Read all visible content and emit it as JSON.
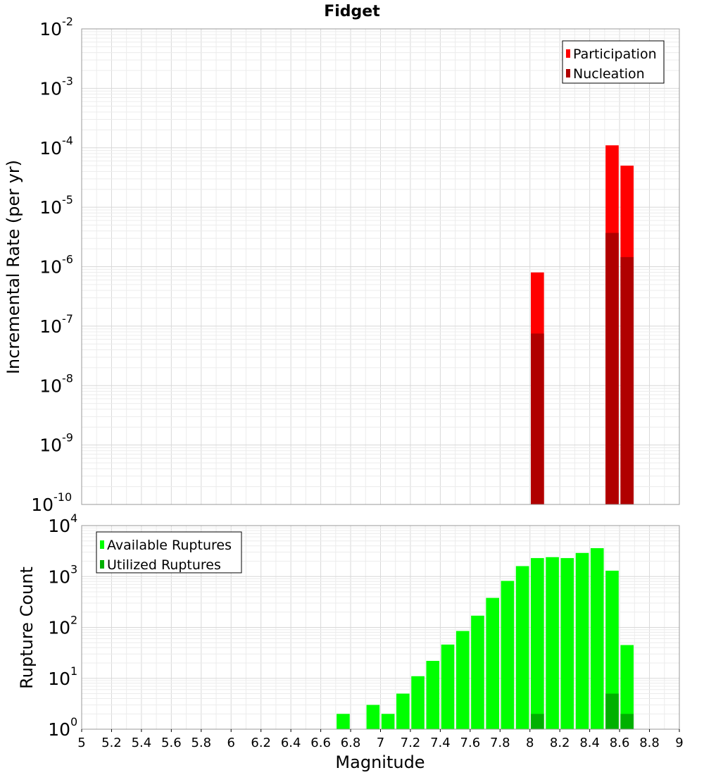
{
  "chart_data": [
    {
      "type": "bar",
      "title": "Fidget",
      "xlabel": "",
      "ylabel": "Incremental Rate (per yr)",
      "y_scale": "log",
      "ylim": [
        1e-10,
        0.01
      ],
      "xlim": [
        5,
        9
      ],
      "y_ticks": [
        {
          "base": "10",
          "exp": "-2",
          "value": 0.01
        },
        {
          "base": "10",
          "exp": "-3",
          "value": 0.001
        },
        {
          "base": "10",
          "exp": "-4",
          "value": 0.0001
        },
        {
          "base": "10",
          "exp": "-5",
          "value": 1e-05
        },
        {
          "base": "10",
          "exp": "-6",
          "value": 1e-06
        },
        {
          "base": "10",
          "exp": "-7",
          "value": 1e-07
        },
        {
          "base": "10",
          "exp": "-8",
          "value": 1e-08
        },
        {
          "base": "10",
          "exp": "-9",
          "value": 1e-09
        },
        {
          "base": "10",
          "exp": "-10",
          "value": 1e-10
        }
      ],
      "grid": true,
      "legend_position": "top-right",
      "series": [
        {
          "name": "Participation",
          "color": "#ff0000",
          "x": [
            8.05,
            8.55,
            8.65
          ],
          "values": [
            8e-07,
            0.00011,
            5e-05
          ]
        },
        {
          "name": "Nucleation",
          "color": "#b00000",
          "x": [
            8.05,
            8.55,
            8.65
          ],
          "values": [
            7.5e-08,
            3.7e-06,
            1.45e-06
          ]
        }
      ]
    },
    {
      "type": "bar",
      "xlabel": "Magnitude",
      "ylabel": "Rupture Count",
      "y_scale": "log",
      "ylim": [
        1,
        10000
      ],
      "xlim": [
        5,
        9
      ],
      "x_ticks": [
        "5",
        "5.2",
        "5.4",
        "5.6",
        "5.8",
        "6",
        "6.2",
        "6.4",
        "6.6",
        "6.8",
        "7",
        "7.2",
        "7.4",
        "7.6",
        "7.8",
        "8",
        "8.2",
        "8.4",
        "8.6",
        "8.8",
        "9"
      ],
      "y_ticks": [
        {
          "base": "10",
          "exp": "4",
          "value": 10000
        },
        {
          "base": "10",
          "exp": "3",
          "value": 1000
        },
        {
          "base": "10",
          "exp": "2",
          "value": 100
        },
        {
          "base": "10",
          "exp": "1",
          "value": 10
        },
        {
          "base": "10",
          "exp": "0",
          "value": 1
        }
      ],
      "grid": true,
      "legend_position": "top-left",
      "series": [
        {
          "name": "Available Ruptures",
          "color": "#00ff00",
          "x": [
            6.75,
            6.95,
            7.05,
            7.15,
            7.25,
            7.35,
            7.45,
            7.55,
            7.65,
            7.75,
            7.85,
            7.95,
            8.05,
            8.15,
            8.25,
            8.35,
            8.45,
            8.55,
            8.65
          ],
          "values": [
            2,
            3,
            2,
            5,
            11,
            22,
            46,
            85,
            170,
            380,
            820,
            1600,
            2300,
            2400,
            2300,
            2900,
            3600,
            1300,
            45
          ]
        },
        {
          "name": "Utilized Ruptures",
          "color": "#00b000",
          "x": [
            8.05,
            8.55,
            8.65
          ],
          "values": [
            2,
            5,
            2
          ]
        }
      ]
    }
  ]
}
